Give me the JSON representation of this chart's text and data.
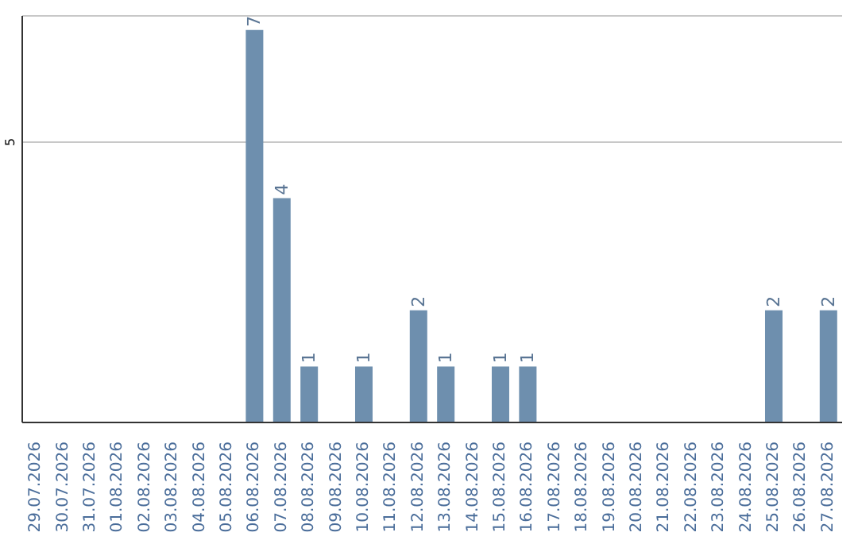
{
  "chart_data": {
    "type": "bar",
    "categories": [
      "29.07.2026",
      "30.07.2026",
      "31.07.2026",
      "01.08.2026",
      "02.08.2026",
      "03.08.2026",
      "04.08.2026",
      "05.08.2026",
      "06.08.2026",
      "07.08.2026",
      "08.08.2026",
      "09.08.2026",
      "10.08.2026",
      "11.08.2026",
      "12.08.2026",
      "13.08.2026",
      "14.08.2026",
      "15.08.2026",
      "16.08.2026",
      "17.08.2026",
      "18.08.2026",
      "19.08.2026",
      "20.08.2026",
      "21.08.2026",
      "22.08.2026",
      "23.08.2026",
      "24.08.2026",
      "25.08.2026",
      "26.08.2026",
      "27.08.2026"
    ],
    "values": [
      0,
      0,
      0,
      0,
      0,
      0,
      0,
      0,
      7,
      4,
      1,
      0,
      1,
      0,
      2,
      1,
      0,
      1,
      1,
      0,
      0,
      0,
      0,
      0,
      0,
      0,
      0,
      2,
      0,
      2
    ],
    "value_labels": [
      null,
      null,
      null,
      null,
      null,
      null,
      null,
      null,
      "7",
      "4",
      "1",
      null,
      "1",
      null,
      "2",
      "1",
      null,
      "1",
      "1",
      null,
      null,
      null,
      null,
      null,
      null,
      null,
      null,
      "2",
      null,
      "2"
    ],
    "color": "#6e8fae",
    "ylim": [
      0,
      7.25
    ],
    "yticks": [
      5
    ],
    "grid": "y"
  }
}
